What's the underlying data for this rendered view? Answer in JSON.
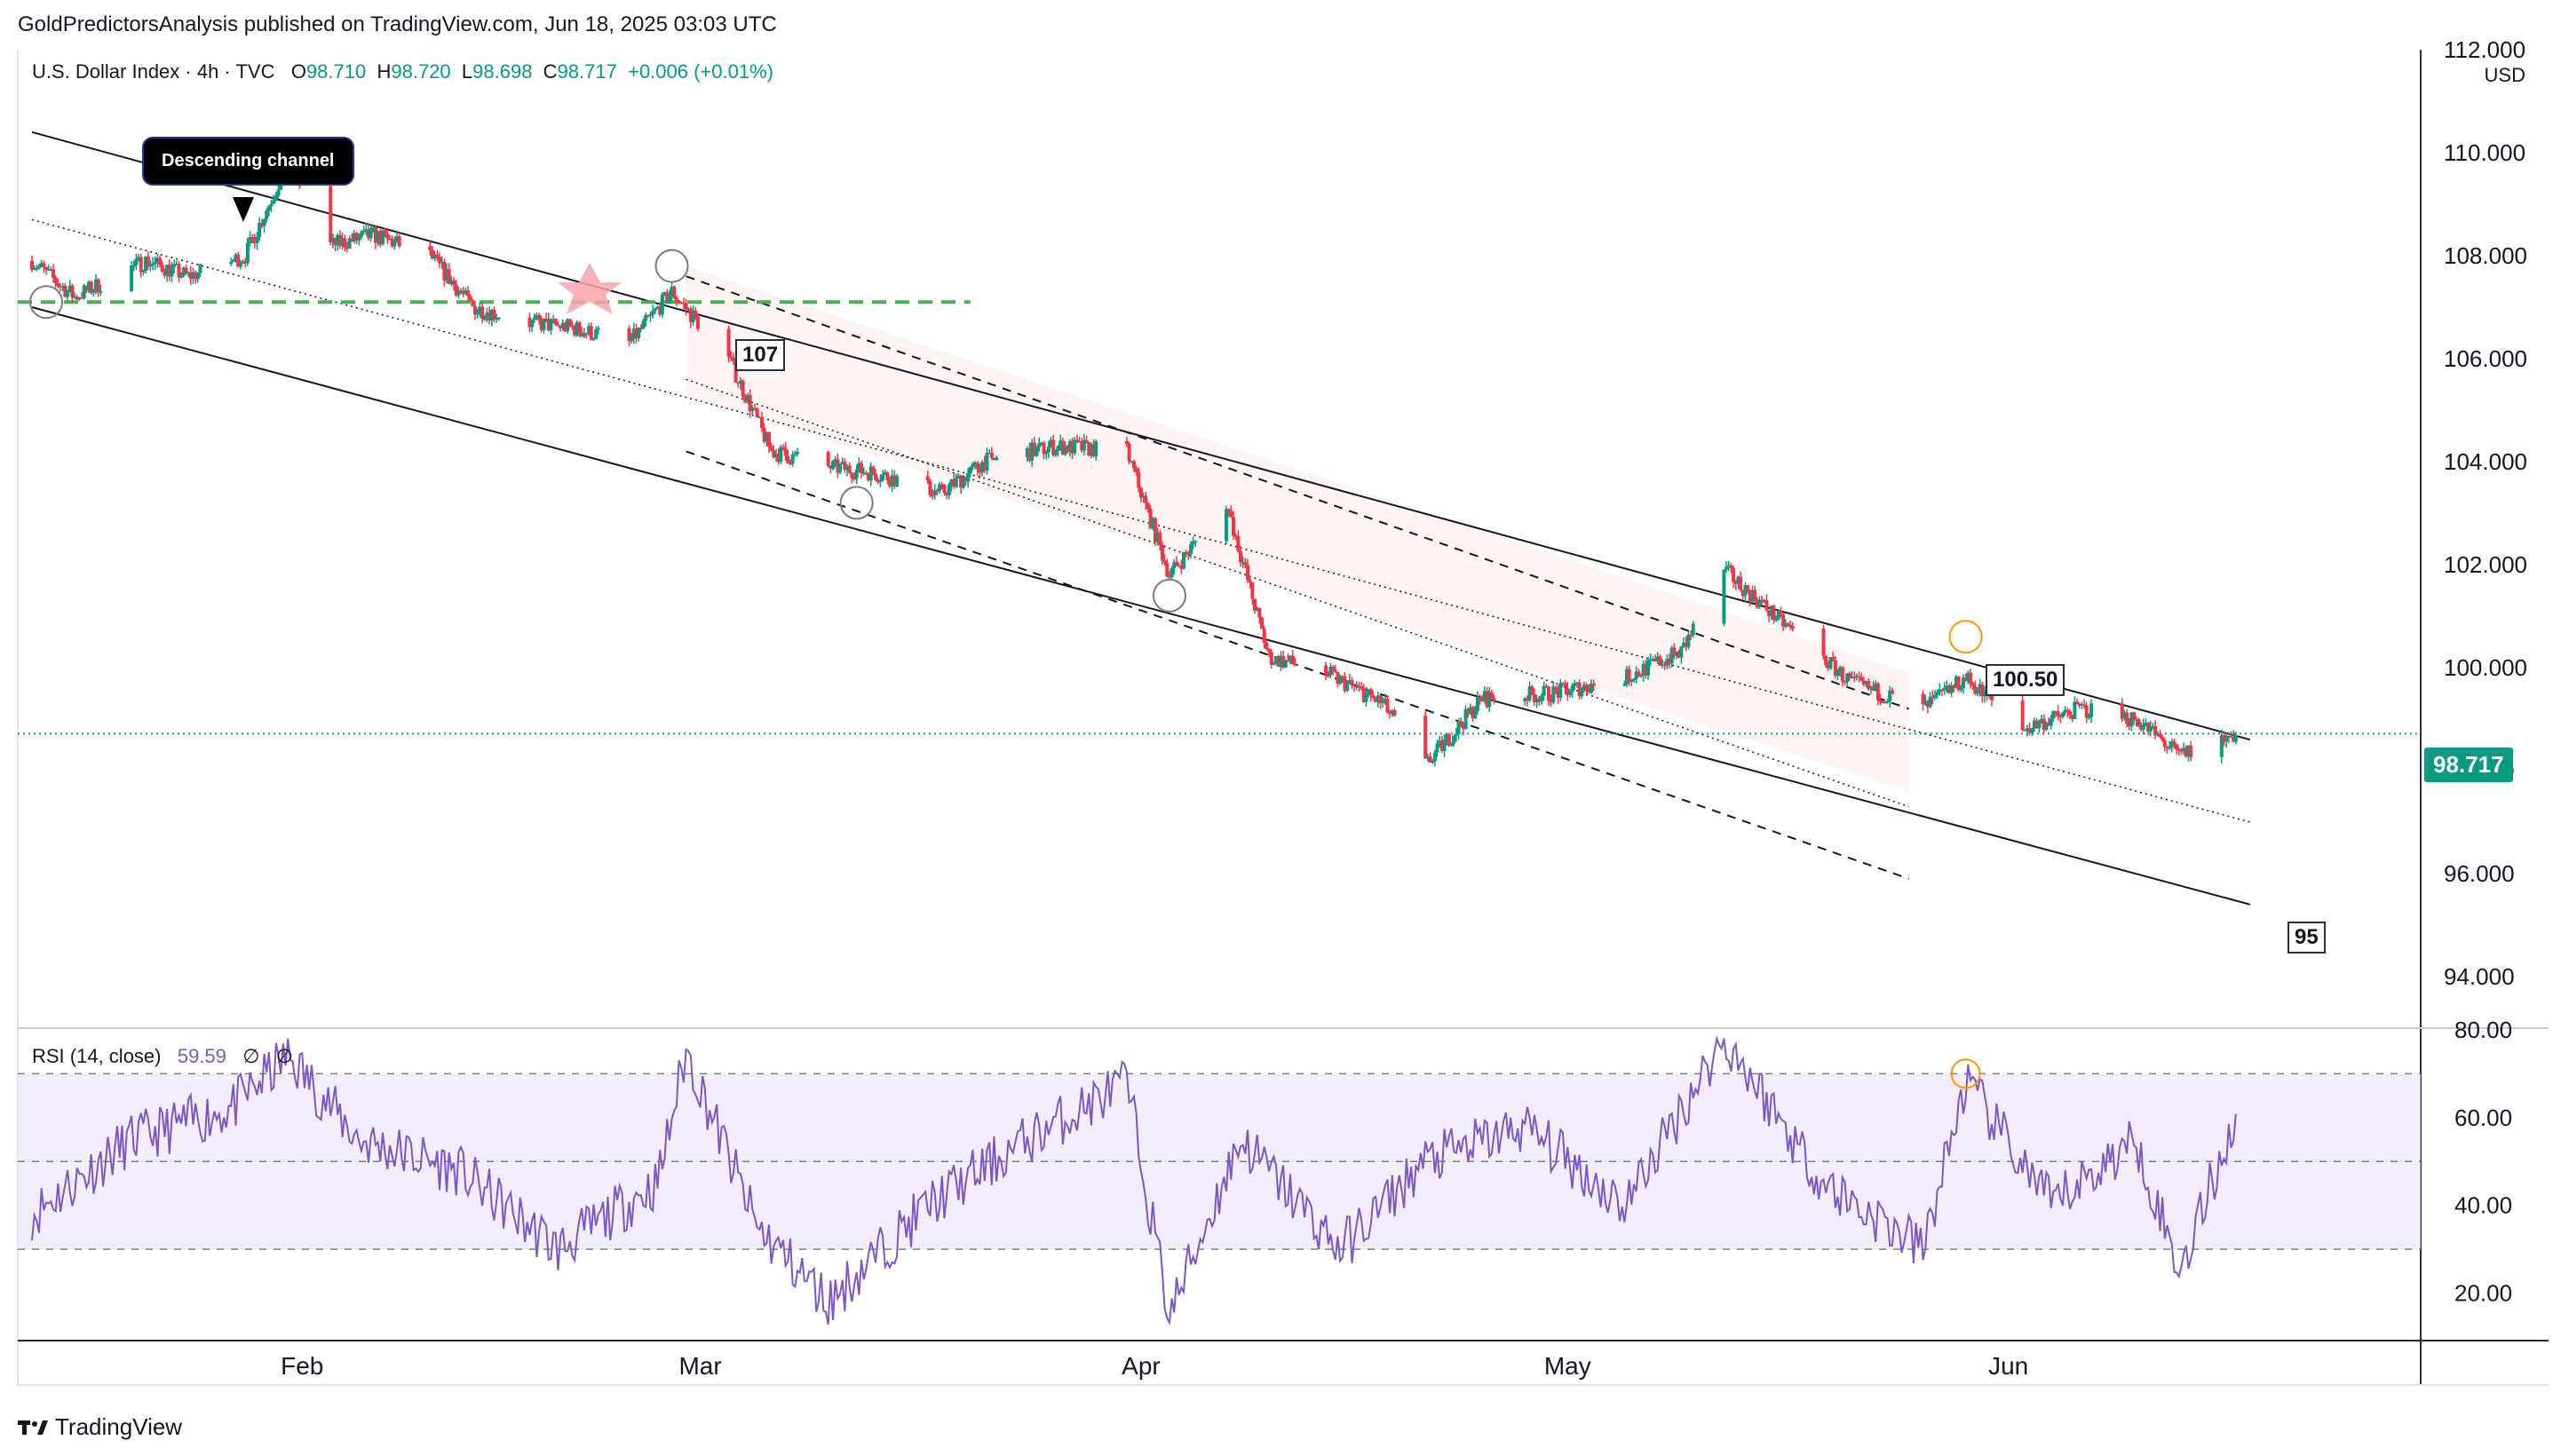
{
  "header": {
    "published": "GoldPredictorsAnalysis published on TradingView.com, Jun 18, 2025 03:03 UTC"
  },
  "legend": {
    "symbol": "U.S. Dollar Index · 4h · TVC",
    "open_label": "O",
    "open": "98.710",
    "high_label": "H",
    "high": "98.720",
    "low_label": "L",
    "low": "98.698",
    "close_label": "C",
    "close": "98.717",
    "change": "+0.006 (+0.01%)"
  },
  "currency": "USD",
  "last_price": "98.717",
  "annotations": {
    "channel_label": "Descending channel",
    "level_107": "107",
    "level_100_50": "100.50",
    "level_95": "95"
  },
  "rsi_legend": {
    "name": "RSI (14, close)",
    "value": "59.59",
    "extra1": "∅",
    "extra2": "∅"
  },
  "branding": {
    "logo_text": "TradingView"
  },
  "colors": {
    "up": "#089981",
    "down": "#f23645",
    "rsi": "#7e57c2",
    "rsi_band": "#ede7f6",
    "level_line": "#4caf50",
    "circle_orange": "#ff9800"
  },
  "chart_data": [
    {
      "type": "candlestick",
      "price_axis": {
        "min": 93,
        "max": 112,
        "ticks": [
          "94.000",
          "96.000",
          "98.000",
          "100.000",
          "102.000",
          "104.000",
          "106.000",
          "108.000",
          "110.000",
          "112.000"
        ]
      },
      "time_axis": {
        "ticks": [
          "Feb",
          "Mar",
          "Apr",
          "May",
          "Jun"
        ]
      },
      "series": [
        {
          "name": "close",
          "x": [
            "2025-01-13",
            "2025-01-16",
            "2025-01-21",
            "2025-01-24",
            "2025-01-28",
            "2025-01-31",
            "2025-02-03",
            "2025-02-06",
            "2025-02-10",
            "2025-02-13",
            "2025-02-17",
            "2025-02-20",
            "2025-02-24",
            "2025-02-27",
            "2025-03-03",
            "2025-03-06",
            "2025-03-10",
            "2025-03-13",
            "2025-03-18",
            "2025-03-21",
            "2025-03-26",
            "2025-03-31",
            "2025-04-03",
            "2025-04-07",
            "2025-04-10",
            "2025-04-14",
            "2025-04-18",
            "2025-04-21",
            "2025-04-25",
            "2025-04-30",
            "2025-05-05",
            "2025-05-09",
            "2025-05-12",
            "2025-05-16",
            "2025-05-21",
            "2025-05-26",
            "2025-05-29",
            "2025-06-02",
            "2025-06-06",
            "2025-06-10",
            "2025-06-13",
            "2025-06-17"
          ],
          "values": [
            107.9,
            107.2,
            107.9,
            107.6,
            108.0,
            109.8,
            108.2,
            108.4,
            108.0,
            107.0,
            106.7,
            106.6,
            106.3,
            107.3,
            106.0,
            104.2,
            103.9,
            103.8,
            103.4,
            104.0,
            104.3,
            104.2,
            101.8,
            103.2,
            100.2,
            99.9,
            99.3,
            98.1,
            99.4,
            99.5,
            99.8,
            100.3,
            101.9,
            100.9,
            99.7,
            99.2,
            99.8,
            98.8,
            99.2,
            99.0,
            98.3,
            98.7
          ]
        }
      ]
    },
    {
      "type": "line",
      "name": "RSI (14, close)",
      "y_axis": {
        "min": 10,
        "max": 80,
        "ticks": [
          "20.00",
          "40.00",
          "60.00",
          "80.00"
        ]
      },
      "bands": {
        "upper": 70,
        "middle": 50,
        "lower": 30
      },
      "x": [
        "2025-01-13",
        "2025-01-20",
        "2025-01-27",
        "2025-01-31",
        "2025-02-05",
        "2025-02-12",
        "2025-02-19",
        "2025-02-26",
        "2025-02-28",
        "2025-03-05",
        "2025-03-10",
        "2025-03-17",
        "2025-03-24",
        "2025-03-31",
        "2025-04-03",
        "2025-04-08",
        "2025-04-15",
        "2025-04-21",
        "2025-04-28",
        "2025-05-05",
        "2025-05-12",
        "2025-05-19",
        "2025-05-26",
        "2025-05-29",
        "2025-06-04",
        "2025-06-10",
        "2025-06-13",
        "2025-06-17"
      ],
      "values": [
        38,
        55,
        62,
        74,
        55,
        48,
        30,
        45,
        75,
        35,
        18,
        40,
        55,
        68,
        15,
        55,
        30,
        50,
        58,
        40,
        78,
        45,
        30,
        68,
        40,
        55,
        25,
        60
      ]
    }
  ]
}
